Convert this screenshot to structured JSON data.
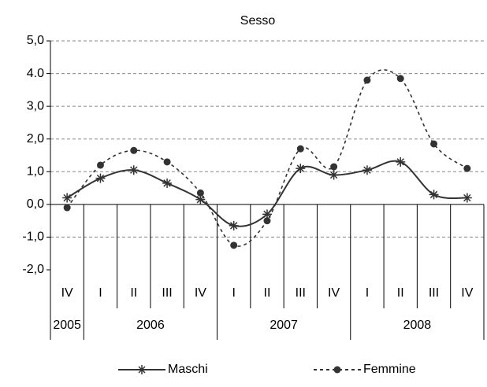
{
  "chart_data": {
    "type": "line",
    "title": "Sesso",
    "categories": [
      "IV",
      "I",
      "II",
      "III",
      "IV",
      "I",
      "II",
      "III",
      "IV",
      "I",
      "II",
      "III",
      "IV"
    ],
    "category_groups": [
      "2005",
      "2006",
      null,
      null,
      null,
      "2007",
      null,
      null,
      null,
      "2008",
      null,
      null,
      null
    ],
    "series": [
      {
        "name": "Maschi",
        "color": "#333333",
        "marker": "star",
        "dash": "solid",
        "values": [
          0.2,
          0.8,
          1.05,
          0.65,
          0.15,
          -0.65,
          -0.3,
          1.1,
          0.9,
          1.05,
          1.3,
          0.3,
          0.2
        ]
      },
      {
        "name": "Femmine",
        "color": "#333333",
        "marker": "circle",
        "dash": "dashed",
        "values": [
          -0.1,
          1.2,
          1.65,
          1.3,
          0.35,
          -1.25,
          -0.5,
          1.7,
          1.15,
          3.8,
          3.85,
          1.85,
          1.1
        ]
      }
    ],
    "ylim": [
      -2,
      5
    ],
    "yticks": [
      {
        "value": -2,
        "label": "-2,0"
      },
      {
        "value": -1,
        "label": "-1,0"
      },
      {
        "value": 0,
        "label": "0,0"
      },
      {
        "value": 1,
        "label": "1,0"
      },
      {
        "value": 2,
        "label": "2,0"
      },
      {
        "value": 3,
        "label": "3,0"
      },
      {
        "value": 4,
        "label": "4.0"
      },
      {
        "value": 5,
        "label": "5,0"
      }
    ],
    "grid": true,
    "legend": "bottom"
  }
}
